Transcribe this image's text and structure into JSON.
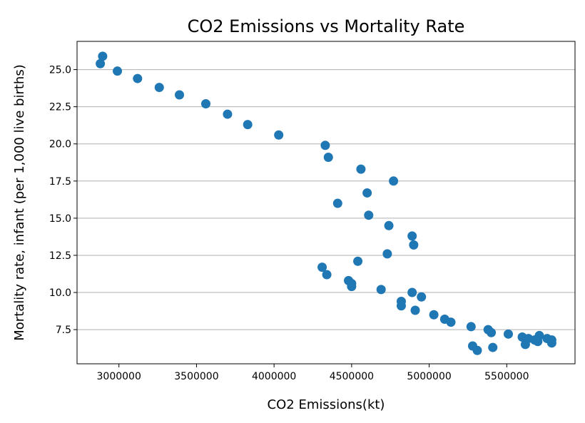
{
  "chart_data": {
    "type": "scatter",
    "title": "CO2 Emissions vs Mortality Rate",
    "xlabel": "CO2 Emissions(kt)",
    "ylabel": "Mortality rate, infant (per 1,000 live births)",
    "xlim": [
      2730000,
      5940000
    ],
    "ylim": [
      5.2,
      26.9
    ],
    "xticks": [
      3000000,
      3500000,
      4000000,
      4500000,
      5000000,
      5500000
    ],
    "xtick_labels": [
      "3000000",
      "3500000",
      "4000000",
      "4500000",
      "5000000",
      "5500000"
    ],
    "yticks": [
      7.5,
      10.0,
      12.5,
      15.0,
      17.5,
      20.0,
      22.5,
      25.0
    ],
    "ytick_labels": [
      "7.5",
      "10.0",
      "12.5",
      "15.0",
      "17.5",
      "20.0",
      "22.5",
      "25.0"
    ],
    "grid": "y-major",
    "color": "#1f77b4",
    "points": [
      [
        2895000,
        25.9
      ],
      [
        2880000,
        25.4
      ],
      [
        2990000,
        24.9
      ],
      [
        3120000,
        24.4
      ],
      [
        3260000,
        23.8
      ],
      [
        3390000,
        23.3
      ],
      [
        3560000,
        22.7
      ],
      [
        3700000,
        22.0
      ],
      [
        3830000,
        21.3
      ],
      [
        4030000,
        20.6
      ],
      [
        4330000,
        19.9
      ],
      [
        4350000,
        19.1
      ],
      [
        4560000,
        18.3
      ],
      [
        4770000,
        17.5
      ],
      [
        4600000,
        16.7
      ],
      [
        4410000,
        16.0
      ],
      [
        4610000,
        15.2
      ],
      [
        4740000,
        14.5
      ],
      [
        4890000,
        13.8
      ],
      [
        4900000,
        13.2
      ],
      [
        4730000,
        12.6
      ],
      [
        4540000,
        12.1
      ],
      [
        4310000,
        11.7
      ],
      [
        4340000,
        11.2
      ],
      [
        4480000,
        10.8
      ],
      [
        4500000,
        10.6
      ],
      [
        4500000,
        10.4
      ],
      [
        4690000,
        10.2
      ],
      [
        4890000,
        10.0
      ],
      [
        4950000,
        9.7
      ],
      [
        4820000,
        9.4
      ],
      [
        4820000,
        9.1
      ],
      [
        4910000,
        8.8
      ],
      [
        5030000,
        8.5
      ],
      [
        5100000,
        8.2
      ],
      [
        5140000,
        8.0
      ],
      [
        5270000,
        7.7
      ],
      [
        5380000,
        7.5
      ],
      [
        5400000,
        7.3
      ],
      [
        5510000,
        7.2
      ],
      [
        5600000,
        7.0
      ],
      [
        5640000,
        6.9
      ],
      [
        5710000,
        7.1
      ],
      [
        5760000,
        6.9
      ],
      [
        5790000,
        6.8
      ],
      [
        5680000,
        6.8
      ],
      [
        5700000,
        6.7
      ],
      [
        5620000,
        6.5
      ],
      [
        5790000,
        6.6
      ],
      [
        5280000,
        6.4
      ],
      [
        5410000,
        6.3
      ],
      [
        5310000,
        6.1
      ]
    ]
  }
}
